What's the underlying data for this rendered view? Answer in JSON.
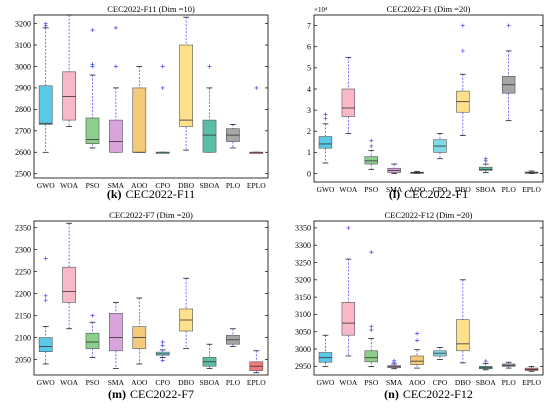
{
  "chart_data": [
    {
      "type": "box",
      "title": "CEC2022-F11 (Dim =10)",
      "caption_label": "(k)",
      "caption_text": "CEC2022-F11",
      "exponent": "",
      "ylim": [
        2480,
        3240
      ],
      "yticks": [
        2500,
        2600,
        2700,
        2800,
        2900,
        3000,
        3100,
        3200
      ],
      "categories": [
        "GWO",
        "WOA",
        "PSO",
        "SMA",
        "AOO",
        "CPO",
        "DBO",
        "SBOA",
        "PLO",
        "EPLO"
      ],
      "boxes": [
        {
          "min": 2600,
          "q1": 2730,
          "median": 2735,
          "q3": 2910,
          "max": 3180,
          "outliers": [
            3190,
            3200
          ]
        },
        {
          "min": 2720,
          "q1": 2750,
          "median": 2860,
          "q3": 2975,
          "max": 3240,
          "outliers": []
        },
        {
          "min": 2620,
          "q1": 2640,
          "median": 2660,
          "q3": 2760,
          "max": 2960,
          "outliers": [
            3000,
            3010,
            3170
          ]
        },
        {
          "min": 2600,
          "q1": 2600,
          "median": 2650,
          "q3": 2750,
          "max": 2900,
          "outliers": [
            3000,
            3180
          ]
        },
        {
          "min": 2600,
          "q1": 2600,
          "median": 2600,
          "q3": 2900,
          "max": 3000,
          "outliers": []
        },
        {
          "min": 2600,
          "q1": 2600,
          "median": 2600,
          "q3": 2600,
          "max": 2600,
          "outliers": [
            2900,
            3000
          ]
        },
        {
          "min": 2610,
          "q1": 2720,
          "median": 2750,
          "q3": 3100,
          "max": 3230,
          "outliers": []
        },
        {
          "min": 2600,
          "q1": 2600,
          "median": 2680,
          "q3": 2750,
          "max": 2900,
          "outliers": [
            3000
          ]
        },
        {
          "min": 2620,
          "q1": 2650,
          "median": 2680,
          "q3": 2710,
          "max": 2730,
          "outliers": []
        },
        {
          "min": 2600,
          "q1": 2600,
          "median": 2600,
          "q3": 2600,
          "max": 2600,
          "outliers": [
            2900
          ]
        }
      ]
    },
    {
      "type": "box",
      "title": "CEC2022-F1 (Dim =20)",
      "caption_label": "(l)",
      "caption_text": "CEC2022-F1",
      "exponent": "×10⁴",
      "ylim": [
        -0.4,
        7.5
      ],
      "yticks": [
        0,
        1,
        2,
        3,
        4,
        5,
        6,
        7
      ],
      "categories": [
        "GWO",
        "WOA",
        "PSO",
        "SMA",
        "AOO",
        "CPO",
        "DBO",
        "SBOA",
        "PLO",
        "EPLO"
      ],
      "boxes": [
        {
          "min": 0.5,
          "q1": 1.2,
          "median": 1.4,
          "q3": 1.75,
          "max": 2.35,
          "outliers": [
            2.6,
            2.8
          ]
        },
        {
          "min": 1.9,
          "q1": 2.7,
          "median": 3.1,
          "q3": 4.0,
          "max": 5.5,
          "outliers": []
        },
        {
          "min": 0.2,
          "q1": 0.45,
          "median": 0.6,
          "q3": 0.8,
          "max": 1.1,
          "outliers": [
            1.3,
            1.55
          ]
        },
        {
          "min": 0.0,
          "q1": 0.05,
          "median": 0.15,
          "q3": 0.25,
          "max": 0.45,
          "outliers": []
        },
        {
          "min": 0.0,
          "q1": 0.02,
          "median": 0.04,
          "q3": 0.06,
          "max": 0.1,
          "outliers": []
        },
        {
          "min": 0.7,
          "q1": 1.0,
          "median": 1.3,
          "q3": 1.6,
          "max": 1.9,
          "outliers": []
        },
        {
          "min": 1.8,
          "q1": 2.9,
          "median": 3.4,
          "q3": 3.9,
          "max": 4.7,
          "outliers": [
            5.8,
            7.0
          ]
        },
        {
          "min": 0.05,
          "q1": 0.15,
          "median": 0.2,
          "q3": 0.3,
          "max": 0.45,
          "outliers": [
            0.6,
            0.7
          ]
        },
        {
          "min": 2.5,
          "q1": 3.8,
          "median": 4.2,
          "q3": 4.6,
          "max": 5.8,
          "outliers": [
            7.0
          ]
        },
        {
          "min": 0.0,
          "q1": 0.02,
          "median": 0.04,
          "q3": 0.07,
          "max": 0.12,
          "outliers": []
        }
      ]
    },
    {
      "type": "box",
      "title": "CEC2022-F7 (Dim =20)",
      "caption_label": "(m)",
      "caption_text": "CEC2022-F7",
      "exponent": "",
      "ylim": [
        2015,
        2365
      ],
      "yticks": [
        2050,
        2100,
        2150,
        2200,
        2250,
        2300,
        2350
      ],
      "categories": [
        "GWO",
        "WOA",
        "PSO",
        "SMA",
        "AOO",
        "CPO",
        "DBO",
        "SBOA",
        "PLO",
        "EPLO"
      ],
      "boxes": [
        {
          "min": 2040,
          "q1": 2068,
          "median": 2080,
          "q3": 2100,
          "max": 2125,
          "outliers": [
            2185,
            2195,
            2280
          ]
        },
        {
          "min": 2120,
          "q1": 2180,
          "median": 2205,
          "q3": 2260,
          "max": 2360,
          "outliers": []
        },
        {
          "min": 2055,
          "q1": 2075,
          "median": 2090,
          "q3": 2110,
          "max": 2135,
          "outliers": [
            2150
          ]
        },
        {
          "min": 2030,
          "q1": 2070,
          "median": 2100,
          "q3": 2155,
          "max": 2180,
          "outliers": []
        },
        {
          "min": 2040,
          "q1": 2075,
          "median": 2100,
          "q3": 2125,
          "max": 2190,
          "outliers": []
        },
        {
          "min": 2055,
          "q1": 2060,
          "median": 2063,
          "q3": 2067,
          "max": 2072,
          "outliers": [
            2048,
            2082,
            2090
          ]
        },
        {
          "min": 2075,
          "q1": 2115,
          "median": 2140,
          "q3": 2165,
          "max": 2235,
          "outliers": []
        },
        {
          "min": 2030,
          "q1": 2035,
          "median": 2045,
          "q3": 2055,
          "max": 2085,
          "outliers": []
        },
        {
          "min": 2080,
          "q1": 2085,
          "median": 2095,
          "q3": 2105,
          "max": 2120,
          "outliers": []
        },
        {
          "min": 2020,
          "q1": 2025,
          "median": 2035,
          "q3": 2045,
          "max": 2070,
          "outliers": []
        }
      ]
    },
    {
      "type": "box",
      "title": "CEC2022-F12 (Dim =20)",
      "caption_label": "(n)",
      "caption_text": "CEC2022-F12",
      "exponent": "",
      "ylim": [
        2925,
        3370
      ],
      "yticks": [
        2950,
        3000,
        3050,
        3100,
        3150,
        3200,
        3250,
        3300,
        3350
      ],
      "categories": [
        "GWO",
        "WOA",
        "PSO",
        "SMA",
        "AOO",
        "CPO",
        "DBO",
        "SBOA",
        "PLO",
        "EPLO"
      ],
      "boxes": [
        {
          "min": 2950,
          "q1": 2962,
          "median": 2975,
          "q3": 2990,
          "max": 3040,
          "outliers": []
        },
        {
          "min": 2980,
          "q1": 3040,
          "median": 3075,
          "q3": 3135,
          "max": 3260,
          "outliers": [
            3350
          ]
        },
        {
          "min": 2950,
          "q1": 2963,
          "median": 2975,
          "q3": 2995,
          "max": 3030,
          "outliers": [
            3055,
            3065,
            3280
          ]
        },
        {
          "min": 2943,
          "q1": 2946,
          "median": 2949,
          "q3": 2952,
          "max": 2957,
          "outliers": [
            2962,
            2966
          ]
        },
        {
          "min": 2945,
          "q1": 2955,
          "median": 2965,
          "q3": 2980,
          "max": 2998,
          "outliers": [
            3025,
            3045
          ]
        },
        {
          "min": 2970,
          "q1": 2980,
          "median": 2988,
          "q3": 2995,
          "max": 3005,
          "outliers": []
        },
        {
          "min": 2960,
          "q1": 2995,
          "median": 3015,
          "q3": 3085,
          "max": 3200,
          "outliers": []
        },
        {
          "min": 2940,
          "q1": 2943,
          "median": 2946,
          "q3": 2950,
          "max": 2958,
          "outliers": [
            2965
          ]
        },
        {
          "min": 2945,
          "q1": 2950,
          "median": 2953,
          "q3": 2957,
          "max": 2962,
          "outliers": []
        },
        {
          "min": 2936,
          "q1": 2938,
          "median": 2941,
          "q3": 2945,
          "max": 2950,
          "outliers": []
        }
      ]
    }
  ],
  "box_colors": [
    "#5ac8e8",
    "#f9b8c8",
    "#8ccf8c",
    "#d9a3dc",
    "#f5c97a",
    "#7fd9e6",
    "#ffe08c",
    "#5bbfa8",
    "#a6a6a6",
    "#f37a7a"
  ],
  "whisker_color": "#3a3aff",
  "outlier_color": "#4040ff"
}
